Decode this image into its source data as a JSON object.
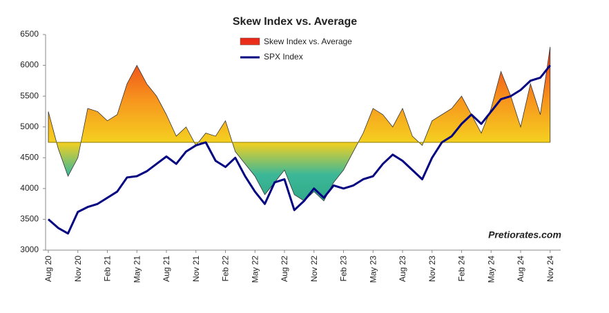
{
  "chart_data": {
    "type": "area-line",
    "title": "Skew Index vs. Average",
    "annotation": "Pretiorates.com",
    "categories": [
      "Aug 20",
      null,
      null,
      "Nov 20",
      null,
      null,
      "Feb 21",
      null,
      null,
      "May 21",
      null,
      null,
      "Aug 21",
      null,
      null,
      "Nov 21",
      null,
      null,
      "Feb 22",
      null,
      null,
      "May 22",
      null,
      null,
      "Aug 22",
      null,
      null,
      "Nov 22",
      null,
      null,
      "Feb 23",
      null,
      null,
      "May 23",
      null,
      null,
      "Aug 23",
      null,
      null,
      "Nov 23",
      null,
      null,
      "Feb 24",
      null,
      null,
      "May 24",
      null,
      null,
      "Aug 24",
      null,
      null,
      "Nov 24"
    ],
    "baseline": 4750,
    "series": [
      {
        "name": "Skew Index vs. Average",
        "color": "#e8201a",
        "values": [
          5250,
          4650,
          4200,
          4500,
          5300,
          5250,
          5100,
          5200,
          5700,
          6000,
          5700,
          5500,
          5200,
          4850,
          5000,
          4700,
          4900,
          4850,
          5100,
          4600,
          4400,
          4200,
          3900,
          4100,
          4300,
          3900,
          3800,
          3950,
          3800,
          4100,
          4300,
          4600,
          4900,
          5300,
          5200,
          5000,
          5300,
          4850,
          4700,
          5100,
          5200,
          5300,
          5500,
          5200,
          4900,
          5300,
          5900,
          5500,
          5000,
          5700,
          5200,
          6300
        ]
      },
      {
        "name": "SPX Index",
        "color": "#000080",
        "values": [
          3500,
          3360,
          3270,
          3620,
          3700,
          3750,
          3850,
          3950,
          4180,
          4200,
          4280,
          4400,
          4520,
          4400,
          4600,
          4700,
          4750,
          4450,
          4350,
          4500,
          4200,
          3950,
          3750,
          4100,
          4150,
          3650,
          3800,
          4000,
          3850,
          4050,
          4000,
          4050,
          4150,
          4200,
          4400,
          4550,
          4450,
          4300,
          4150,
          4500,
          4750,
          4850,
          5050,
          5200,
          5050,
          5250,
          5450,
          5500,
          5600,
          5750,
          5800,
          6000
        ]
      }
    ],
    "ylim": [
      3000,
      6500
    ],
    "yticks": [
      3000,
      3500,
      4000,
      4500,
      5000,
      5500,
      6000,
      6500
    ]
  }
}
